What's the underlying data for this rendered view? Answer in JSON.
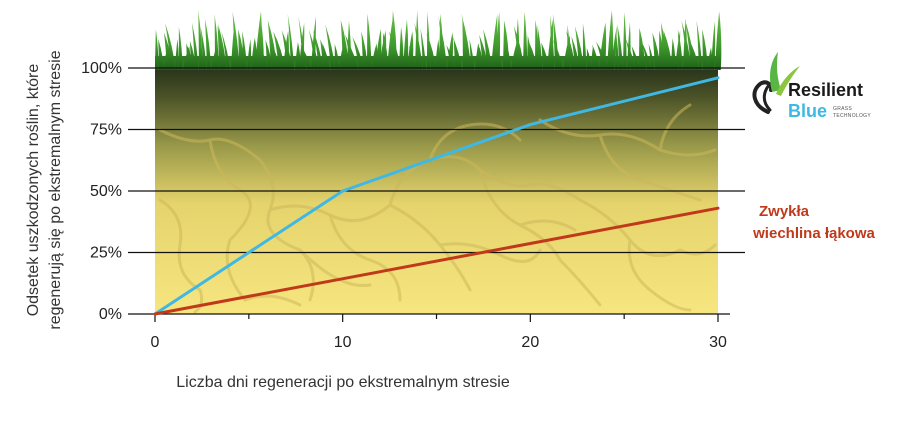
{
  "chart_data": {
    "type": "line",
    "x_ticks": [
      0,
      10,
      20,
      30
    ],
    "y_ticks": [
      "0%",
      "25%",
      "50%",
      "75%",
      "100%"
    ],
    "y_tick_values": [
      0,
      25,
      50,
      75,
      100
    ],
    "xlim": [
      0,
      30
    ],
    "ylim": [
      0,
      100
    ],
    "xlabel": "Liczba dni regeneracji po ekstremalnym stresie",
    "ylabel_lines": [
      "Odsetek uszkodzonych roślin, które",
      "regenerują się po ekstremalnym stresie"
    ],
    "grid": "horizontal",
    "series": [
      {
        "id": "resilient",
        "color": "#3fb8e4",
        "points": [
          [
            0,
            0
          ],
          [
            10,
            50
          ],
          [
            20,
            77
          ],
          [
            30,
            96
          ]
        ]
      },
      {
        "id": "zwykla",
        "name_lines": [
          "Zwykła",
          "wiechlina łąkowa"
        ],
        "color": "#c0391b",
        "points": [
          [
            0,
            0
          ],
          [
            30,
            43
          ]
        ]
      }
    ]
  },
  "logo": {
    "word1": "Resilient",
    "word2": "Blue",
    "tag1": "GRASS",
    "tag2": "TECHNOLOGY"
  },
  "colors": {
    "grass": "#3e9a2c",
    "soil_top": "#2d3a1a",
    "soil_bottom": "#f5e27a",
    "brand_blue": "#3fb8e4",
    "brand_red": "#c0391b"
  }
}
